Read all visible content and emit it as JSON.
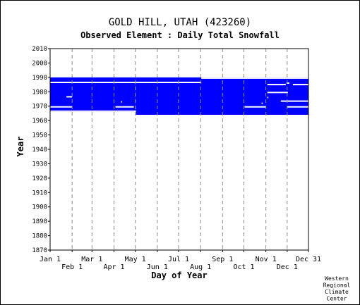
{
  "chart_data": {
    "type": "heatmap",
    "title": "GOLD HILL, UTAH   (423260)",
    "subtitle": "Observed Element : Daily Total Snowfall",
    "xlabel": "Day of Year",
    "ylabel": "Year",
    "ylim": [
      1870,
      2010
    ],
    "y_ticks": [
      1870,
      1880,
      1890,
      1900,
      1910,
      1920,
      1930,
      1940,
      1950,
      1960,
      1970,
      1980,
      1990,
      2000,
      2010
    ],
    "x_ticks_top_row": [
      {
        "label": "Jan 1",
        "day": 1
      },
      {
        "label": "Mar 1",
        "day": 60
      },
      {
        "label": "May 1",
        "day": 121
      },
      {
        "label": "Jul 1",
        "day": 182
      },
      {
        "label": "Sep 1",
        "day": 244
      },
      {
        "label": "Nov 1",
        "day": 305
      },
      {
        "label": "Dec 31",
        "day": 365
      }
    ],
    "x_ticks_bottom_row": [
      {
        "label": "Feb 1",
        "day": 32
      },
      {
        "label": "Apr 1",
        "day": 91
      },
      {
        "label": "Jun 1",
        "day": 152
      },
      {
        "label": "Aug 1",
        "day": 213
      },
      {
        "label": "Oct 1",
        "day": 274
      },
      {
        "label": "Dec 1",
        "day": 335
      }
    ],
    "grid": "dashed vertical at month boundaries",
    "data_color": "#0000ff",
    "data_blocks": [
      {
        "day_start": 1,
        "day_end": 122,
        "year_start": 1966,
        "year_end": 1990
      },
      {
        "day_start": 122,
        "day_end": 365,
        "year_start": 1964,
        "year_end": 1990
      }
    ],
    "missing_segments": [
      {
        "day_start": 1,
        "day_end": 214,
        "year": 1986.5
      },
      {
        "day_start": 214,
        "day_end": 365,
        "year": 1989.5
      },
      {
        "day_start": 307,
        "day_end": 333,
        "year": 1985
      },
      {
        "day_start": 334,
        "day_end": 338,
        "year": 1986
      },
      {
        "day_start": 343,
        "day_end": 365,
        "year": 1985
      },
      {
        "day_start": 307,
        "day_end": 336,
        "year": 1979.5
      },
      {
        "day_start": 24,
        "day_end": 32,
        "year": 1976.5
      },
      {
        "day_start": 307,
        "day_end": 308,
        "year": 1976
      },
      {
        "day_start": 326,
        "day_end": 365,
        "year": 1973.5
      },
      {
        "day_start": 101,
        "day_end": 102,
        "year": 1973
      },
      {
        "day_start": 299,
        "day_end": 300,
        "year": 1972
      },
      {
        "day_start": 1,
        "day_end": 32,
        "year": 1969.5
      },
      {
        "day_start": 93,
        "day_end": 119,
        "year": 1969.5
      },
      {
        "day_start": 275,
        "day_end": 305,
        "year": 1969.5
      },
      {
        "day_start": 335,
        "day_end": 365,
        "year": 1969.5
      },
      {
        "day_start": 1,
        "day_end": 122,
        "year": 1966.5
      }
    ]
  },
  "credit": [
    "Western",
    "Regional",
    "Climate",
    "Center"
  ]
}
